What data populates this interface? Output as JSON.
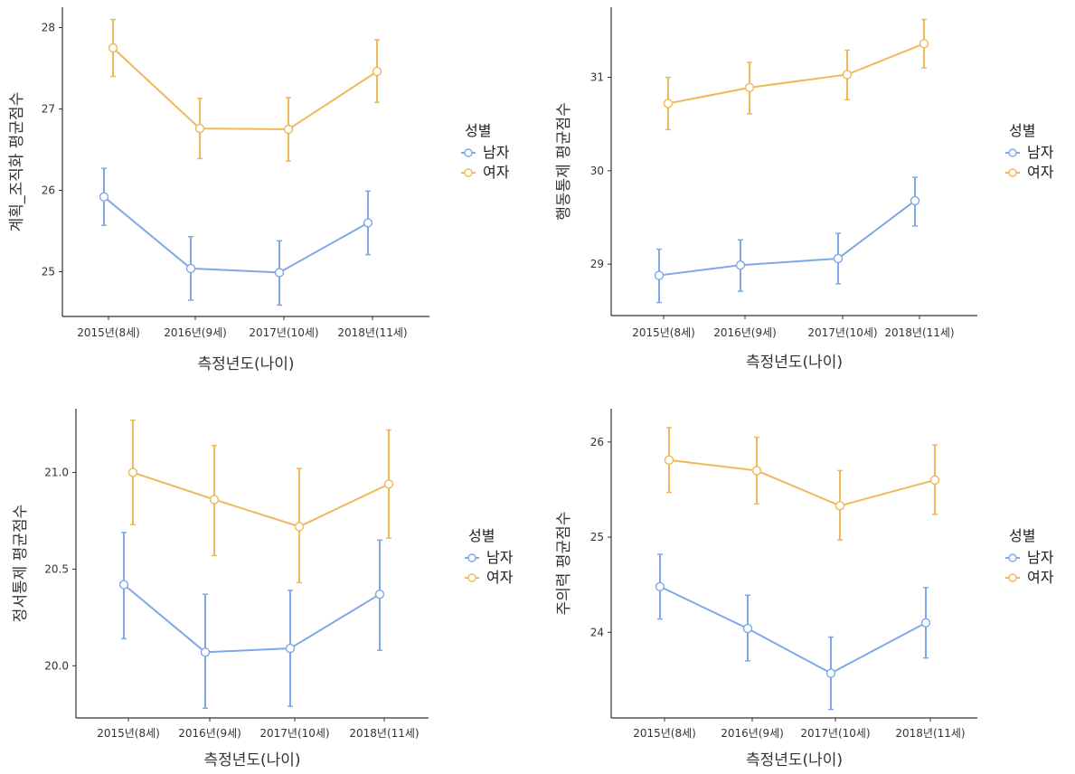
{
  "chart_data": [
    {
      "type": "line",
      "categories": [
        "2015년(8세)",
        "2016년(9세)",
        "2017년(10세)",
        "2018년(11세)"
      ],
      "xlabel": "측정년도(나이)",
      "ylabel": "계획_조직화 평균점수",
      "ylim": [
        24.45,
        28.25
      ],
      "yticks": [
        25,
        26,
        27,
        28
      ],
      "legend_title": "성별",
      "legend_position": "right",
      "series": [
        {
          "name": "남자",
          "color": "#80A8E8",
          "values": [
            25.92,
            25.04,
            24.99,
            25.6
          ],
          "lower": [
            25.57,
            24.65,
            24.59,
            25.21
          ],
          "upper": [
            26.27,
            25.43,
            25.38,
            25.99
          ]
        },
        {
          "name": "여자",
          "color": "#EDB95A",
          "values": [
            27.75,
            26.76,
            26.75,
            27.46
          ],
          "lower": [
            27.4,
            26.39,
            26.36,
            27.08
          ],
          "upper": [
            28.1,
            27.13,
            27.14,
            27.85
          ]
        }
      ]
    },
    {
      "type": "line",
      "categories": [
        "2015년(8세)",
        "2016년(9세)",
        "2017년(10세)",
        "2018년(11세)"
      ],
      "xlabel": "측정년도(나이)",
      "ylabel": "행동통제 평균점수",
      "ylim": [
        28.45,
        31.75
      ],
      "yticks": [
        29,
        30,
        31
      ],
      "legend_title": "성별",
      "legend_position": "right",
      "series": [
        {
          "name": "남자",
          "color": "#80A8E8",
          "values": [
            28.88,
            28.99,
            29.06,
            29.68
          ],
          "lower": [
            28.59,
            28.71,
            28.79,
            29.41
          ],
          "upper": [
            29.16,
            29.26,
            29.33,
            29.93
          ]
        },
        {
          "name": "여자",
          "color": "#EDB95A",
          "values": [
            30.72,
            30.89,
            31.03,
            31.36
          ],
          "lower": [
            30.44,
            30.61,
            30.76,
            31.1
          ],
          "upper": [
            31.0,
            31.16,
            31.29,
            31.62
          ]
        }
      ]
    },
    {
      "type": "line",
      "categories": [
        "2015년(8세)",
        "2016년(9세)",
        "2017년(10세)",
        "2018년(11세)"
      ],
      "xlabel": "측정년도(나이)",
      "ylabel": "정서통제 평균점수",
      "ylim": [
        19.73,
        21.33
      ],
      "yticks": [
        "20.0",
        "20.5",
        "21.0"
      ],
      "legend_title": "성별",
      "legend_position": "right",
      "series": [
        {
          "name": "남자",
          "color": "#80A8E8",
          "values": [
            20.42,
            20.07,
            20.09,
            20.37
          ],
          "lower": [
            20.14,
            19.78,
            19.79,
            20.08
          ],
          "upper": [
            20.69,
            20.37,
            20.39,
            20.65
          ]
        },
        {
          "name": "여자",
          "color": "#EDB95A",
          "values": [
            21.0,
            20.86,
            20.72,
            20.94
          ],
          "lower": [
            20.73,
            20.57,
            20.43,
            20.66
          ],
          "upper": [
            21.27,
            21.14,
            21.02,
            21.22
          ]
        }
      ]
    },
    {
      "type": "line",
      "categories": [
        "2015년(8세)",
        "2016년(9세)",
        "2017년(10세)",
        "2018년(11세)"
      ],
      "xlabel": "측정년도(나이)",
      "ylabel": "주의력 평균점수",
      "ylim": [
        23.1,
        26.35
      ],
      "yticks": [
        24,
        25,
        26
      ],
      "legend_title": "성별",
      "legend_position": "right",
      "series": [
        {
          "name": "남자",
          "color": "#80A8E8",
          "values": [
            24.48,
            24.04,
            23.57,
            24.1
          ],
          "lower": [
            24.14,
            23.7,
            23.19,
            23.73
          ],
          "upper": [
            24.82,
            24.39,
            23.95,
            24.47
          ]
        },
        {
          "name": "여자",
          "color": "#EDB95A",
          "values": [
            25.81,
            25.7,
            25.33,
            25.6
          ],
          "lower": [
            25.47,
            25.35,
            24.97,
            25.24
          ],
          "upper": [
            26.15,
            26.05,
            25.7,
            25.97
          ]
        }
      ]
    }
  ]
}
